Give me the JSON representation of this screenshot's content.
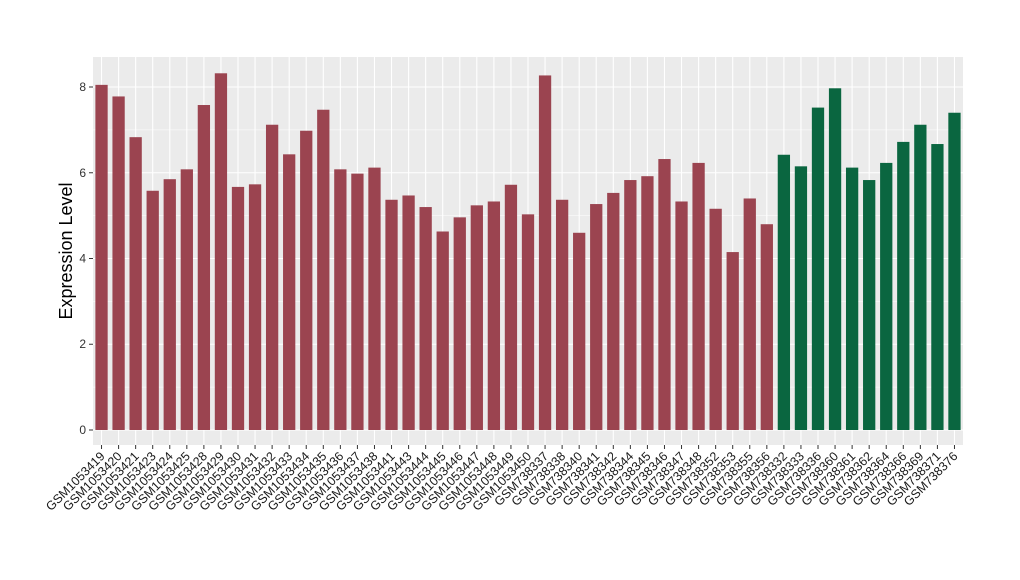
{
  "chart_data": {
    "type": "bar",
    "ylabel": "Expression Level",
    "xlabel": "",
    "ylim": [
      -0.35,
      8.7
    ],
    "yticks": [
      0,
      2,
      4,
      6,
      8
    ],
    "grid": true,
    "legend": "none",
    "colors": {
      "group1": "#9b4450",
      "group2": "#0a6640",
      "panel": "#ebebeb",
      "gridline": "#ffffff"
    },
    "categories": [
      "GSM1053419",
      "GSM1053420",
      "GSM1053421",
      "GSM1053423",
      "GSM1053424",
      "GSM1053425",
      "GSM1053428",
      "GSM1053429",
      "GSM1053430",
      "GSM1053431",
      "GSM1053432",
      "GSM1053433",
      "GSM1053434",
      "GSM1053435",
      "GSM1053436",
      "GSM1053437",
      "GSM1053438",
      "GSM1053441",
      "GSM1053443",
      "GSM1053444",
      "GSM1053445",
      "GSM1053446",
      "GSM1053447",
      "GSM1053448",
      "GSM1053449",
      "GSM1053450",
      "GSM738337",
      "GSM738338",
      "GSM738340",
      "GSM738341",
      "GSM738342",
      "GSM738344",
      "GSM738345",
      "GSM738346",
      "GSM738347",
      "GSM738348",
      "GSM738352",
      "GSM738353",
      "GSM738355",
      "GSM738356",
      "GSM738332",
      "GSM738333",
      "GSM738336",
      "GSM738360",
      "GSM738361",
      "GSM738362",
      "GSM738364",
      "GSM738366",
      "GSM738369",
      "GSM738371",
      "GSM738376"
    ],
    "values": [
      8.05,
      7.78,
      6.83,
      5.58,
      5.85,
      6.08,
      7.58,
      8.32,
      5.67,
      5.73,
      7.12,
      6.43,
      6.98,
      7.47,
      6.08,
      5.98,
      6.12,
      5.37,
      5.47,
      5.2,
      4.63,
      4.96,
      5.24,
      5.33,
      5.72,
      5.03,
      8.27,
      5.37,
      4.6,
      5.27,
      5.53,
      5.83,
      5.92,
      6.32,
      5.33,
      6.23,
      5.16,
      4.15,
      5.4,
      4.8,
      6.42,
      6.15,
      7.52,
      7.97,
      6.12,
      5.83,
      6.23,
      6.72,
      7.12,
      6.67,
      7.4
    ],
    "groups": [
      "group1",
      "group1",
      "group1",
      "group1",
      "group1",
      "group1",
      "group1",
      "group1",
      "group1",
      "group1",
      "group1",
      "group1",
      "group1",
      "group1",
      "group1",
      "group1",
      "group1",
      "group1",
      "group1",
      "group1",
      "group1",
      "group1",
      "group1",
      "group1",
      "group1",
      "group1",
      "group1",
      "group1",
      "group1",
      "group1",
      "group1",
      "group1",
      "group1",
      "group1",
      "group1",
      "group1",
      "group1",
      "group1",
      "group1",
      "group1",
      "group2",
      "group2",
      "group2",
      "group2",
      "group2",
      "group2",
      "group2",
      "group2",
      "group2",
      "group2",
      "group2"
    ]
  }
}
